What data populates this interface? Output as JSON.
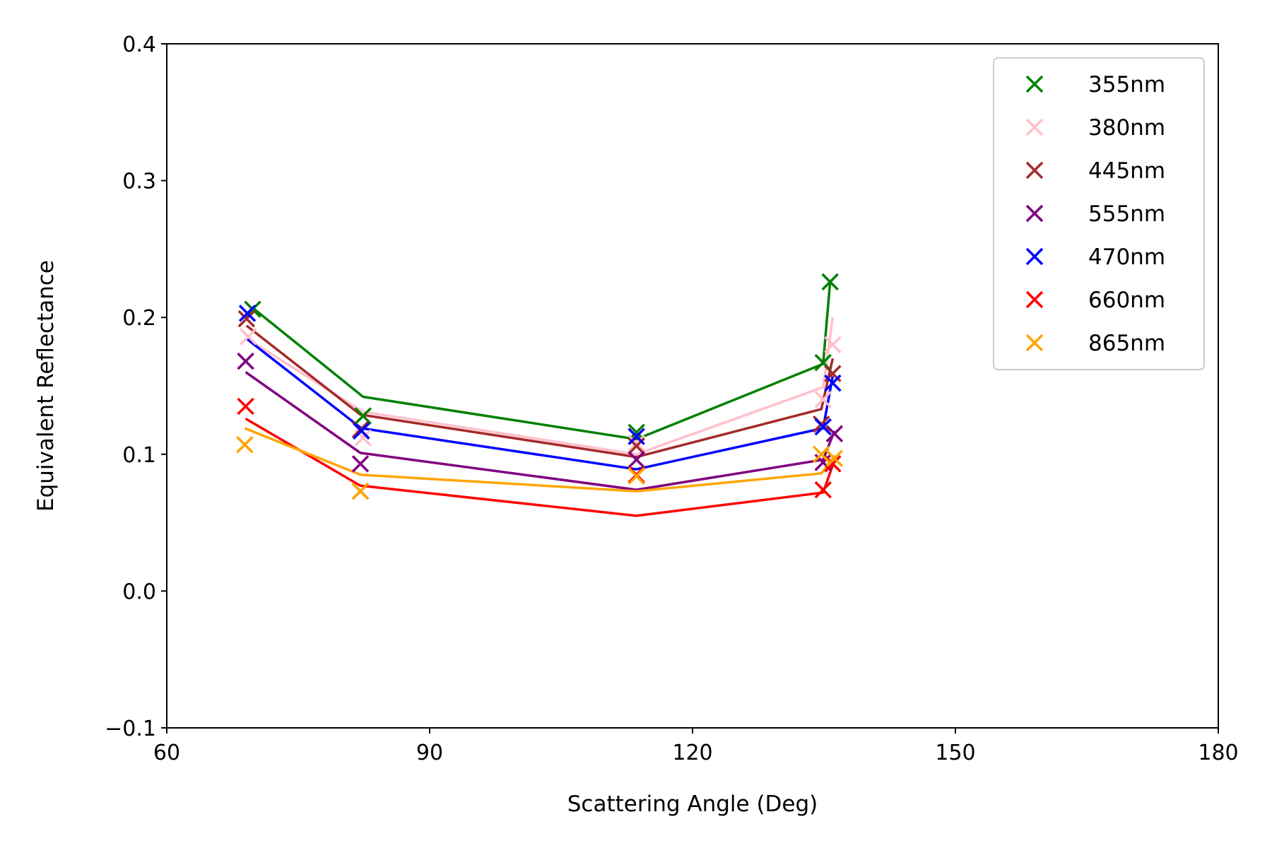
{
  "chart_data": {
    "type": "scatter",
    "title": "",
    "xlabel": "Scattering Angle (Deg)",
    "ylabel": "Equivalent Reflectance",
    "xlim": [
      60,
      180
    ],
    "ylim": [
      -0.1,
      0.4
    ],
    "xticks": [
      60,
      90,
      120,
      150,
      180
    ],
    "xtick_labels": [
      "60",
      "90",
      "120",
      "150",
      "180"
    ],
    "yticks": [
      -0.1,
      0.0,
      0.1,
      0.2,
      0.3,
      0.4
    ],
    "ytick_labels": [
      "−0.1",
      "0.0",
      "0.1",
      "0.2",
      "0.3",
      "0.4"
    ],
    "grid": false,
    "legend_position": "top-right",
    "marker": "x",
    "series": [
      {
        "name": "355nm",
        "color": "#008000",
        "points": [
          [
            69.8,
            0.206
          ],
          [
            82.4,
            0.128
          ],
          [
            113.6,
            0.116
          ],
          [
            134.9,
            0.167
          ],
          [
            135.7,
            0.226
          ]
        ],
        "fit": [
          [
            69.8,
            0.207
          ],
          [
            82.4,
            0.142
          ],
          [
            113.6,
            0.111
          ],
          [
            134.9,
            0.166
          ],
          [
            135.7,
            0.226
          ]
        ]
      },
      {
        "name": "380nm",
        "color": "#ffc0cb",
        "points": [
          [
            69.3,
            0.186
          ],
          [
            82.4,
            0.112
          ],
          [
            113.6,
            0.108
          ],
          [
            134.9,
            0.14
          ],
          [
            136.0,
            0.18
          ]
        ],
        "fit": [
          [
            69.3,
            0.184
          ],
          [
            82.4,
            0.131
          ],
          [
            113.6,
            0.1
          ],
          [
            134.9,
            0.149
          ],
          [
            136.0,
            0.2
          ]
        ]
      },
      {
        "name": "445nm",
        "color": "#a52a2a",
        "points": [
          [
            69.1,
            0.199
          ],
          [
            82.1,
            0.118
          ],
          [
            113.6,
            0.106
          ],
          [
            134.7,
            0.122
          ],
          [
            136.0,
            0.159
          ]
        ],
        "fit": [
          [
            69.1,
            0.194
          ],
          [
            82.1,
            0.129
          ],
          [
            113.6,
            0.098
          ],
          [
            134.7,
            0.133
          ],
          [
            136.0,
            0.17
          ]
        ]
      },
      {
        "name": "555nm",
        "color": "#800080",
        "points": [
          [
            69.0,
            0.168
          ],
          [
            82.1,
            0.093
          ],
          [
            113.6,
            0.096
          ],
          [
            134.9,
            0.094
          ],
          [
            136.2,
            0.115
          ]
        ],
        "fit": [
          [
            69.0,
            0.16
          ],
          [
            82.1,
            0.101
          ],
          [
            113.6,
            0.074
          ],
          [
            134.9,
            0.096
          ],
          [
            136.2,
            0.117
          ]
        ]
      },
      {
        "name": "470nm",
        "color": "#0000ff",
        "points": [
          [
            69.2,
            0.203
          ],
          [
            82.2,
            0.117
          ],
          [
            113.6,
            0.113
          ],
          [
            134.9,
            0.12
          ],
          [
            136.0,
            0.152
          ]
        ],
        "fit": [
          [
            69.2,
            0.184
          ],
          [
            82.2,
            0.119
          ],
          [
            113.6,
            0.089
          ],
          [
            134.9,
            0.119
          ],
          [
            136.0,
            0.157
          ]
        ]
      },
      {
        "name": "660nm",
        "color": "#ff0000",
        "points": [
          [
            69.0,
            0.135
          ],
          [
            82.1,
            0.073
          ],
          [
            113.6,
            0.085
          ],
          [
            134.9,
            0.074
          ],
          [
            136.0,
            0.093
          ]
        ],
        "fit": [
          [
            69.0,
            0.126
          ],
          [
            82.1,
            0.077
          ],
          [
            113.6,
            0.055
          ],
          [
            134.9,
            0.072
          ],
          [
            136.0,
            0.092
          ]
        ]
      },
      {
        "name": "865nm",
        "color": "#ffa500",
        "points": [
          [
            68.9,
            0.107
          ],
          [
            82.1,
            0.073
          ],
          [
            113.6,
            0.084
          ],
          [
            134.7,
            0.1
          ],
          [
            136.2,
            0.097
          ]
        ],
        "fit": [
          [
            68.9,
            0.119
          ],
          [
            82.1,
            0.085
          ],
          [
            113.6,
            0.073
          ],
          [
            134.7,
            0.086
          ],
          [
            136.2,
            0.099
          ]
        ]
      }
    ]
  }
}
